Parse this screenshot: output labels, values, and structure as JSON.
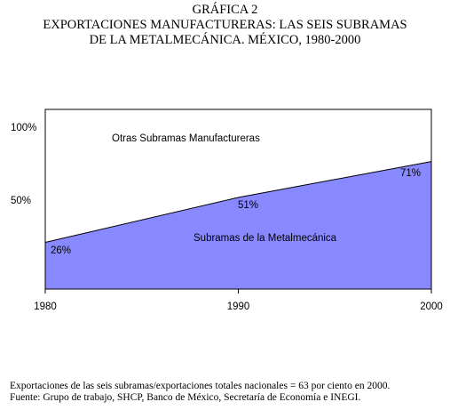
{
  "header": {
    "line1": "GRÁFICA 2",
    "line2": "EXPORTACIONES MANUFACTURERAS: LAS SEIS SUBRAMAS",
    "line3": "DE LA METALMECÁNICA. MÉXICO, 1980-2000"
  },
  "chart_data": {
    "type": "area",
    "x": [
      1980,
      1990,
      2000
    ],
    "series": [
      {
        "name": "Subramas de la Metalmecánica",
        "values": [
          26,
          51,
          71
        ],
        "color": "#8888ff"
      },
      {
        "name": "Otras Subramas Manufactureras",
        "values": [
          74,
          49,
          29
        ],
        "color": "#ffffff"
      }
    ],
    "point_labels": [
      "26%",
      "51%",
      "71%"
    ],
    "y_ticks": [
      "100%",
      "50%"
    ],
    "y_tick_values": [
      100,
      50
    ],
    "x_ticks": [
      "1980",
      "1990",
      "2000"
    ],
    "ylim": [
      0,
      100
    ],
    "xlim": [
      1980,
      2000
    ],
    "stacked": true
  },
  "footnotes": {
    "note1": "Exportaciones de las seis subramas/exportaciones totales nacionales = 63 por ciento en 2000.",
    "note2": "Fuente: Grupo de trabajo, SHCP, Banco de México, Secretaría de Economía e INEGI."
  }
}
